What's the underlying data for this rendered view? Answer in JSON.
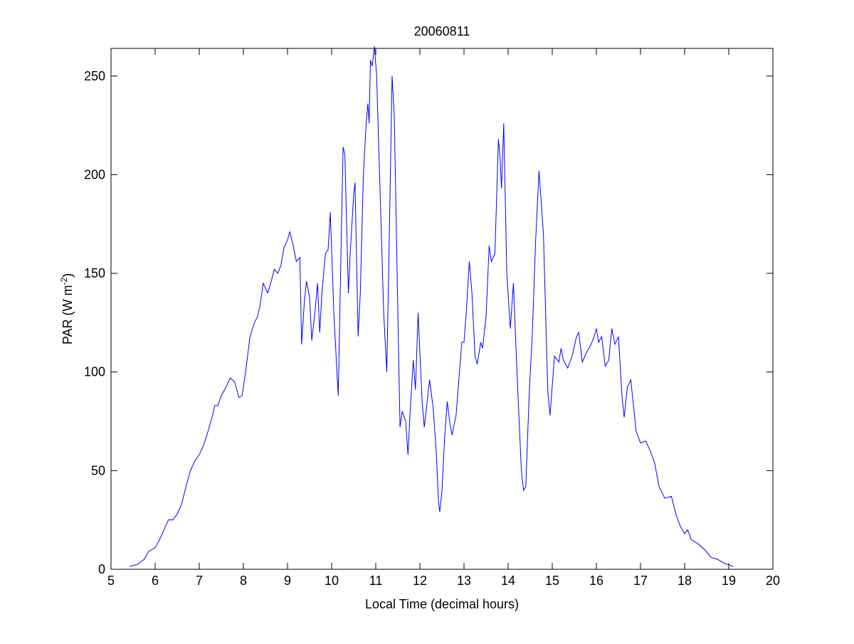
{
  "chart_data": {
    "type": "line",
    "title": "20060811",
    "x_label": "Local Time (decimal hours)",
    "y_label": [
      "PAR (W m",
      "-2",
      ")"
    ],
    "xlim": [
      5,
      20
    ],
    "ylim": [
      0,
      264
    ],
    "xticks": [
      5,
      6,
      7,
      8,
      9,
      10,
      11,
      12,
      13,
      14,
      15,
      16,
      17,
      18,
      19,
      20
    ],
    "yticks": [
      0,
      50,
      100,
      150,
      200,
      250
    ],
    "grid": false,
    "box": true,
    "x": [
      5.42,
      5.6,
      5.75,
      5.85,
      6.0,
      6.1,
      6.2,
      6.3,
      6.4,
      6.5,
      6.6,
      6.7,
      6.8,
      6.9,
      7.0,
      7.1,
      7.2,
      7.3,
      7.35,
      7.42,
      7.5,
      7.6,
      7.7,
      7.8,
      7.9,
      7.97,
      8.05,
      8.15,
      8.25,
      8.32,
      8.38,
      8.45,
      8.55,
      8.62,
      8.7,
      8.78,
      8.85,
      8.92,
      9.0,
      9.05,
      9.12,
      9.2,
      9.28,
      9.32,
      9.38,
      9.43,
      9.5,
      9.55,
      9.62,
      9.68,
      9.73,
      9.78,
      9.86,
      9.92,
      9.97,
      10.05,
      10.12,
      10.15,
      10.22,
      10.26,
      10.3,
      10.38,
      10.42,
      10.5,
      10.53,
      10.6,
      10.65,
      10.72,
      10.78,
      10.82,
      10.85,
      10.88,
      10.92,
      10.97,
      11.02,
      11.1,
      11.18,
      11.25,
      11.3,
      11.37,
      11.42,
      11.5,
      11.55,
      11.6,
      11.68,
      11.73,
      11.78,
      11.85,
      11.9,
      11.96,
      12.0,
      12.05,
      12.1,
      12.18,
      12.22,
      12.3,
      12.37,
      12.42,
      12.45,
      12.5,
      12.57,
      12.62,
      12.68,
      12.73,
      12.82,
      12.88,
      12.95,
      13.0,
      13.05,
      13.12,
      13.18,
      13.25,
      13.3,
      13.38,
      13.42,
      13.5,
      13.57,
      13.62,
      13.7,
      13.78,
      13.82,
      13.85,
      13.9,
      13.97,
      14.05,
      14.12,
      14.2,
      14.3,
      14.35,
      14.4,
      14.48,
      14.55,
      14.62,
      14.7,
      14.8,
      14.9,
      14.95,
      15.05,
      15.15,
      15.2,
      15.25,
      15.35,
      15.45,
      15.55,
      15.6,
      15.68,
      15.78,
      15.88,
      15.95,
      16.0,
      16.05,
      16.12,
      16.2,
      16.28,
      16.35,
      16.42,
      16.5,
      16.58,
      16.63,
      16.7,
      16.78,
      16.9,
      17.0,
      17.12,
      17.22,
      17.32,
      17.42,
      17.55,
      17.7,
      17.8,
      17.9,
      18.0,
      18.07,
      18.15,
      18.3,
      18.45,
      18.6,
      18.75,
      18.9,
      19.1
    ],
    "series": [
      {
        "color": "#0000ff",
        "values": [
          1.5,
          2.5,
          5,
          9,
          11,
          15,
          20,
          25,
          25,
          28,
          33,
          42,
          50,
          55,
          58,
          63,
          70,
          78,
          83,
          83,
          88,
          92,
          97,
          95,
          87,
          88,
          100,
          118,
          125,
          128,
          134,
          145,
          140,
          145,
          152,
          150,
          154,
          163,
          167,
          171,
          165,
          156,
          158,
          114,
          135,
          146,
          138,
          116,
          130,
          145,
          120,
          140,
          160,
          162,
          181,
          130,
          100,
          88,
          170,
          214,
          210,
          140,
          160,
          190,
          196,
          118,
          140,
          200,
          225,
          236,
          226,
          258,
          255,
          265,
          250,
          190,
          130,
          100,
          160,
          250,
          230,
          130,
          72,
          80,
          75,
          58,
          80,
          106,
          91,
          130,
          110,
          85,
          72,
          88,
          96,
          82,
          60,
          35,
          29,
          40,
          70,
          85,
          74,
          68,
          78,
          95,
          115,
          115,
          130,
          156,
          140,
          108,
          104,
          115,
          112,
          128,
          164,
          156,
          160,
          218,
          208,
          193,
          226,
          150,
          122,
          145,
          100,
          50,
          40,
          42,
          90,
          120,
          165,
          202,
          170,
          90,
          78,
          108,
          105,
          112,
          106,
          102,
          108,
          118,
          120,
          105,
          110,
          114,
          118,
          122,
          115,
          118,
          103,
          106,
          122,
          114,
          118,
          88,
          77,
          92,
          96,
          70,
          64,
          65,
          60,
          54,
          42,
          36,
          37,
          28,
          22,
          18,
          20,
          15,
          13,
          10,
          6,
          5,
          3,
          1.5
        ]
      }
    ]
  }
}
